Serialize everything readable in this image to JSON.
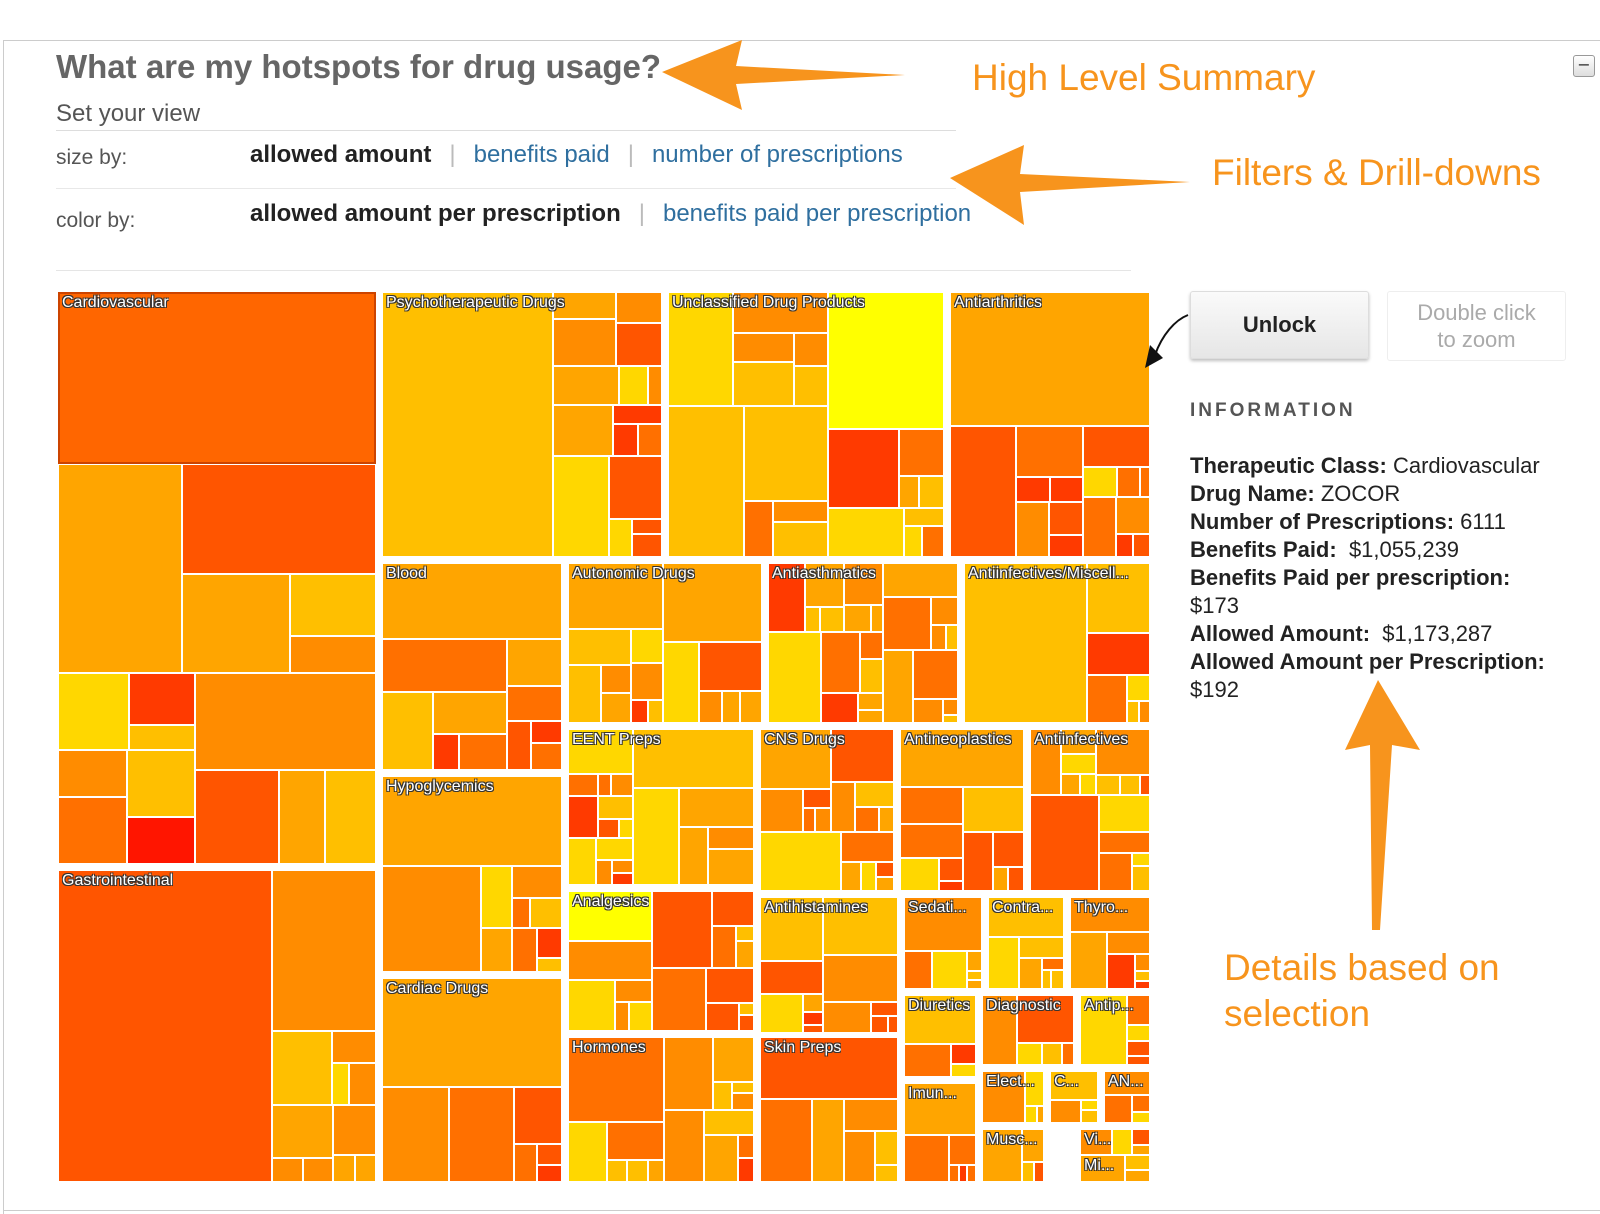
{
  "header": {
    "title": "What are my hotspots for drug usage?",
    "subtitle": "Set your view"
  },
  "controls": {
    "size_by": {
      "label": "size by:",
      "selected": "allowed amount",
      "options": [
        "benefits paid",
        "number of prescriptions"
      ]
    },
    "color_by": {
      "label": "color by:",
      "selected": "allowed amount per prescription",
      "options": [
        "benefits paid per prescription"
      ]
    },
    "collapse_symbol": "−"
  },
  "annotations": {
    "summary": "High Level Summary",
    "filters": "Filters & Drill-downs",
    "details": "Details based on selection"
  },
  "side_panel": {
    "unlock_label": "Unlock",
    "zoom_hint": "Double click to zoom",
    "info_heading": "INFORMATION",
    "fields": [
      {
        "label": "Therapeutic Class:",
        "value": "Cardiovascular"
      },
      {
        "label": "Drug Name:",
        "value": "ZOCOR"
      },
      {
        "label": "Number of Prescriptions:",
        "value": "6111"
      },
      {
        "label": "Benefits Paid:",
        "value": "$1,055,239"
      },
      {
        "label": "Benefits Paid per prescription:",
        "value": "$173"
      },
      {
        "label": "Allowed Amount:",
        "value": "$1,173,287"
      },
      {
        "label": "Allowed Amount per Prescription:",
        "value": "$192"
      }
    ]
  },
  "colors": {
    "accent_annotation": "#f7941d",
    "link": "#2f6f9f",
    "heat_scale": [
      "#ffff00",
      "#ffd700",
      "#ffbf00",
      "#ffa500",
      "#ff8c00",
      "#ff7000",
      "#ff5500",
      "#ff3a00",
      "#ff1500",
      "#ee0000"
    ]
  },
  "treemap": {
    "selected": "Cardiovascular",
    "categories": [
      "Cardiovascular",
      "Gastrointestinal",
      "Psychotherapeutic Drugs",
      "Unclassified Drug Products",
      "Antiarthritics",
      "Blood",
      "Autonomic Drugs",
      "Antiasthmatics",
      "Antiinfectives/Miscell...",
      "Hypoglycemics",
      "EENT Preps",
      "CNS Drugs",
      "Antineoplastics",
      "Antiinfectives",
      "Analgesics",
      "Antihistamines",
      "Sedati...",
      "Contra...",
      "Thyro...",
      "Cardiac Drugs",
      "Diuretics",
      "Diagnostic",
      "Antip...",
      "Hormones",
      "Skin Preps",
      "Imun...",
      "Elect...",
      "C...",
      "AN...",
      "Musc...",
      "Vi...",
      "Mi..."
    ]
  }
}
